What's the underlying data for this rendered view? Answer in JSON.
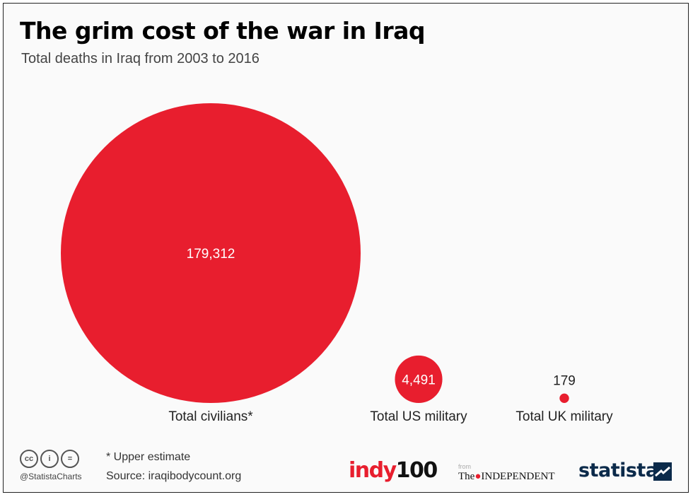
{
  "title": "The grim cost of the war in Iraq",
  "subtitle": "Total deaths in Iraq from 2003 to 2016",
  "chart_data": {
    "type": "bubble",
    "categories": [
      "Total civilians*",
      "Total US military",
      "Total UK military"
    ],
    "values": [
      179312,
      4491,
      179
    ],
    "value_labels": [
      "179,312",
      "4,491",
      "179"
    ],
    "color": "#e81e2e"
  },
  "footer": {
    "note": "* Upper estimate",
    "source": "Source: iraqibodycount.org",
    "handle": "@StatistaCharts",
    "cc_icons": [
      "cc",
      "i",
      "="
    ],
    "logos": {
      "indy_part1": "indy",
      "indy_part2": "100",
      "from": "from",
      "independent_prefix": "The",
      "independent_name": "INDEPENDENT",
      "statista": "statista"
    }
  }
}
